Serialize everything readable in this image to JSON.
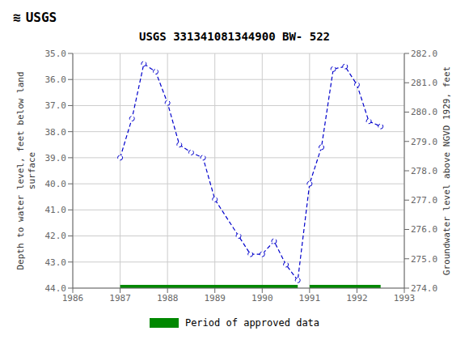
{
  "chart_data": {
    "type": "line",
    "title": "USGS 331341081344900 BW- 522",
    "annotations": [
      "≋",
      "USGS"
    ],
    "y_label": "Depth to water level, feet below land\nsurface",
    "y2_label": "Groundwater level above NGVD 1929, feet",
    "x": [
      1987.0,
      1987.25,
      1987.5,
      1987.75,
      1988.0,
      1988.25,
      1988.5,
      1988.75,
      1989.0,
      1989.5,
      1989.75,
      1990.0,
      1990.25,
      1990.5,
      1990.75,
      1991.0,
      1991.25,
      1991.5,
      1991.75,
      1992.0,
      1992.25,
      1992.5
    ],
    "series": [
      {
        "values": [
          39.0,
          37.5,
          35.4,
          35.7,
          36.9,
          38.5,
          38.8,
          39.0,
          40.6,
          42.0,
          42.7,
          42.7,
          42.2,
          43.1,
          43.7,
          40.0,
          38.6,
          35.6,
          35.5,
          36.2,
          37.6,
          37.8
        ],
        "color": "#0000cc",
        "line_style": "dashed",
        "marker": "open circle"
      },
      {
        "name": "Period of approved data",
        "type": "bar",
        "orientation": "horizontal",
        "segments": [
          [
            1987.0,
            1990.75
          ],
          [
            1991.0,
            1992.5
          ]
        ],
        "y": 44.0,
        "color": "#008800"
      }
    ],
    "xlim": [
      1986,
      1993
    ],
    "xticks": [
      1986,
      1987,
      1988,
      1989,
      1990,
      1991,
      1992,
      1993
    ],
    "ylim": [
      44.0,
      35.0
    ],
    "yticks": [
      {
        "value": 35.0,
        "label": "35.0"
      },
      {
        "value": 36.0,
        "label": "36.0"
      },
      {
        "value": 37.0,
        "label": "37.0"
      },
      {
        "value": 38.0,
        "label": "38.0"
      },
      {
        "value": 39.0,
        "label": "39.0"
      },
      {
        "value": 40.0,
        "label": "40.0"
      },
      {
        "value": 41.0,
        "label": "41.0"
      },
      {
        "value": 42.0,
        "label": "42.0"
      },
      {
        "value": 43.0,
        "label": "43.0"
      },
      {
        "value": 44.0,
        "label": "44.0"
      }
    ],
    "y2lim": [
      274.0,
      282.0
    ],
    "y2ticks": [
      {
        "value": 274.0,
        "label": "274.0"
      },
      {
        "value": 275.0,
        "label": "275.0"
      },
      {
        "value": 276.0,
        "label": "276.0"
      },
      {
        "value": 277.0,
        "label": "277.0"
      },
      {
        "value": 278.0,
        "label": "278.0"
      },
      {
        "value": 279.0,
        "label": "279.0"
      },
      {
        "value": 280.0,
        "label": "280.0"
      },
      {
        "value": 281.0,
        "label": "281.0"
      },
      {
        "value": 282.0,
        "label": "282.0"
      }
    ],
    "grid": true,
    "legend": "bottom"
  }
}
